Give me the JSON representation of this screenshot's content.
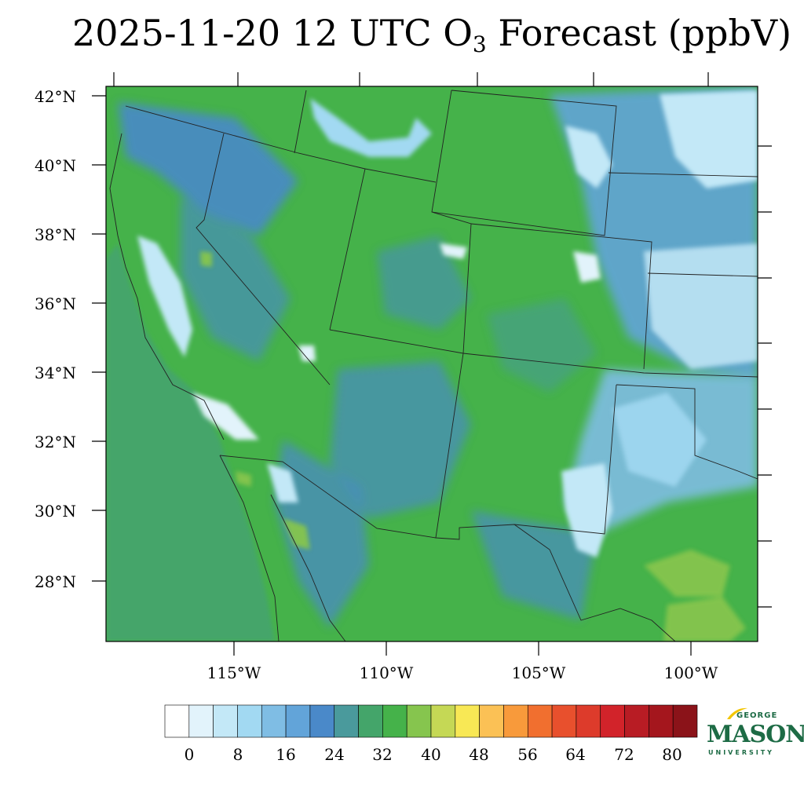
{
  "title": {
    "prefix": "2025-11-20 12 UTC O",
    "sub": "3",
    "suffix": " Forecast (ppbV)"
  },
  "map": {
    "lat_labels": [
      "42°N",
      "40°N",
      "38°N",
      "36°N",
      "34°N",
      "32°N",
      "30°N",
      "28°N"
    ],
    "lon_labels": [
      "115°W",
      "110°W",
      "105°W",
      "100°W"
    ],
    "background": "#45b24a"
  },
  "colorbar": {
    "colors": [
      "#ffffff",
      "#e2f3fb",
      "#c3e8f7",
      "#a2d9f2",
      "#7fbde4",
      "#62a4d9",
      "#4a89c9",
      "#4a9a9c",
      "#44a56a",
      "#45b24a",
      "#86c54e",
      "#c5d855",
      "#f8e855",
      "#fbc155",
      "#f89a3b",
      "#f16f2f",
      "#e8502d",
      "#dd3b2b",
      "#d2232a",
      "#b81c24",
      "#a4161d",
      "#8b1319"
    ],
    "tick_labels": [
      "0",
      "8",
      "16",
      "24",
      "32",
      "40",
      "48",
      "56",
      "64",
      "72",
      "80"
    ]
  },
  "logo": {
    "line1": "GEORGE",
    "line2": "MASON",
    "line3": "UNIVERSITY"
  }
}
